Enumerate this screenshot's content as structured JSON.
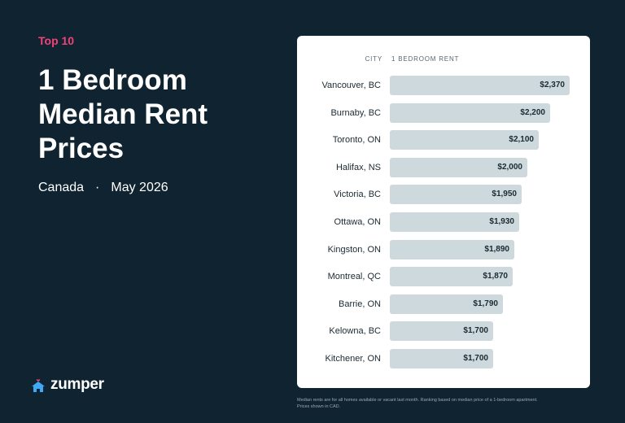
{
  "header": {
    "eyebrow": "Top 10",
    "title_line1": "1 Bedroom",
    "title_line2": "Median Rent",
    "title_line3": "Prices",
    "region": "Canada",
    "separator": "·",
    "date": "May 2026"
  },
  "brand": {
    "name": "zumper",
    "icon": "house-heart-icon",
    "accent": "#f0437a",
    "icon_color": "#3fa9f5"
  },
  "colors": {
    "background": "#0f2430",
    "card": "#ffffff",
    "bar": "#cdd9dc"
  },
  "chart_data": {
    "type": "bar",
    "orientation": "horizontal",
    "column_headers": {
      "category": "CITY",
      "value": "1 BEDROOM RENT"
    },
    "categories": [
      "Vancouver, BC",
      "Burnaby, BC",
      "Toronto, ON",
      "Halifax, NS",
      "Victoria, BC",
      "Ottawa, ON",
      "Kingston, ON",
      "Montreal, QC",
      "Barrie, ON",
      "Kelowna, BC",
      "Kitchener, ON"
    ],
    "values": [
      2370,
      2200,
      2100,
      2000,
      1950,
      1930,
      1890,
      1870,
      1790,
      1700,
      1700
    ],
    "value_labels": [
      "$2,370",
      "$2,200",
      "$2,100",
      "$2,000",
      "$1,950",
      "$1,930",
      "$1,890",
      "$1,870",
      "$1,790",
      "$1,700",
      "$1,700"
    ],
    "xlim": [
      800,
      2370
    ]
  },
  "footnote": "Median rents are for all homes available or vacant last month. Ranking based on median price of a 1-bedroom apartment. Prices shown in CAD."
}
